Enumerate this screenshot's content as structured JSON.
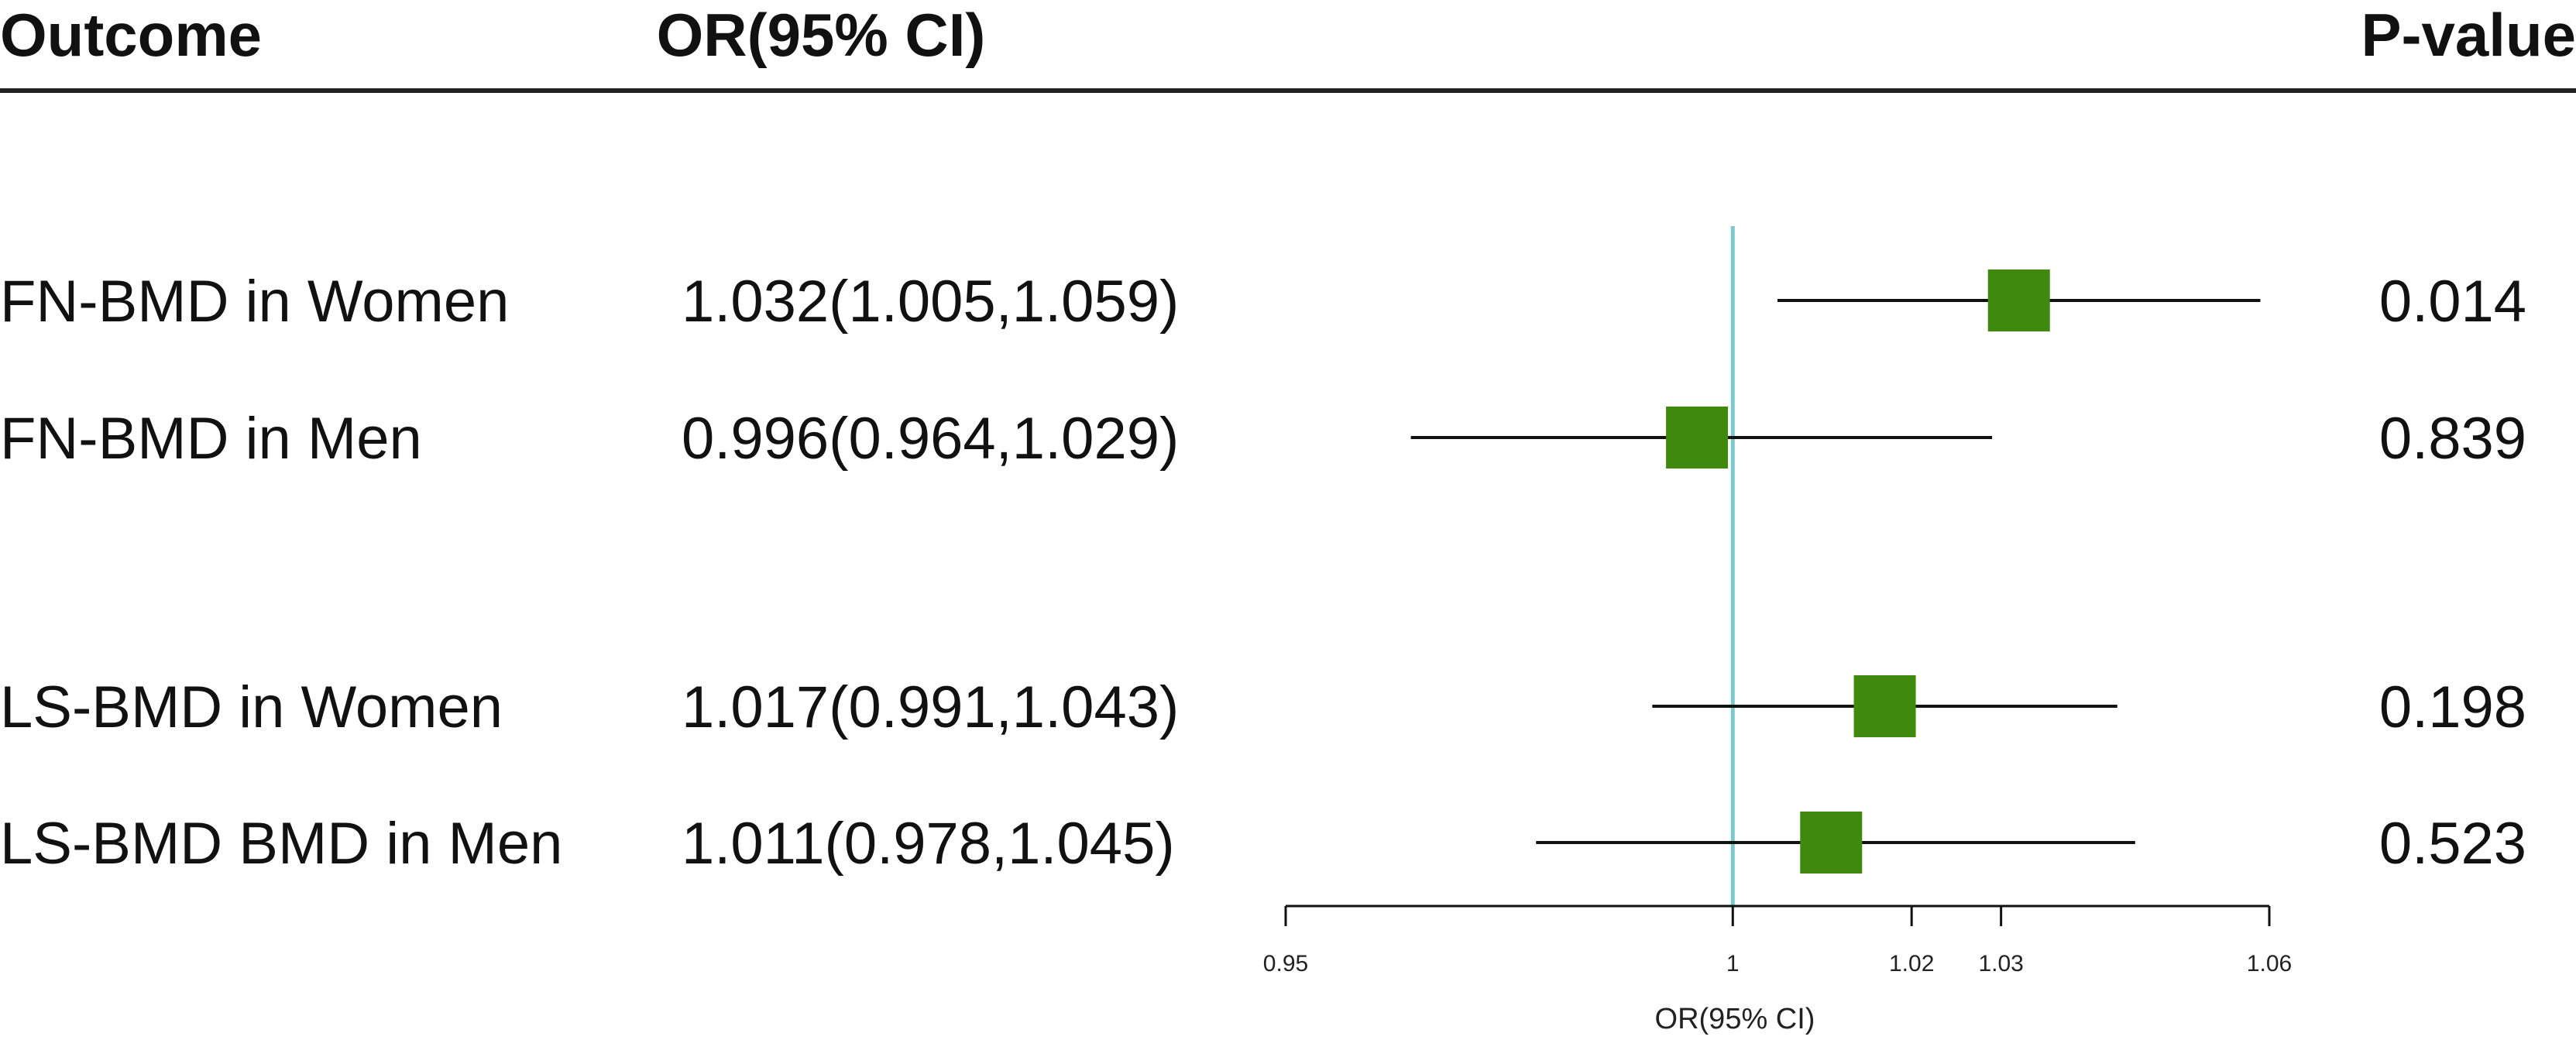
{
  "chart_data": {
    "type": "forest",
    "headers": {
      "outcome": "Outcome",
      "or": "OR(95% CI)",
      "pvalue": "P-value"
    },
    "rows": [
      {
        "outcome": "FN-BMD in Women",
        "or_text": "1.032(1.005,1.059)",
        "or": 1.032,
        "lo": 1.005,
        "hi": 1.059,
        "p": "0.014"
      },
      {
        "outcome": "FN-BMD in  Men",
        "or_text": "0.996(0.964,1.029)",
        "or": 0.996,
        "lo": 0.964,
        "hi": 1.029,
        "p": "0.839"
      },
      {
        "outcome": "LS-BMD in Women",
        "or_text": "1.017(0.991,1.043)",
        "or": 1.017,
        "lo": 0.991,
        "hi": 1.043,
        "p": "0.198"
      },
      {
        "outcome": "LS-BMD BMD in Men",
        "or_text": "1.011(0.978,1.045)",
        "or": 1.011,
        "lo": 0.978,
        "hi": 1.045,
        "p": "0.523"
      }
    ],
    "xlim": [
      0.95,
      1.06
    ],
    "xticks": [
      0.95,
      1,
      1.02,
      1.03,
      1.06
    ],
    "xtick_labels": [
      "0.95",
      "1",
      "1.02",
      "1.03",
      "1.06"
    ],
    "reference": 1,
    "xlabel": "OR(95% CI)",
    "colors": {
      "marker": "#3f8a0c",
      "reference": "#7cc9cc",
      "ci": "#111111"
    }
  }
}
